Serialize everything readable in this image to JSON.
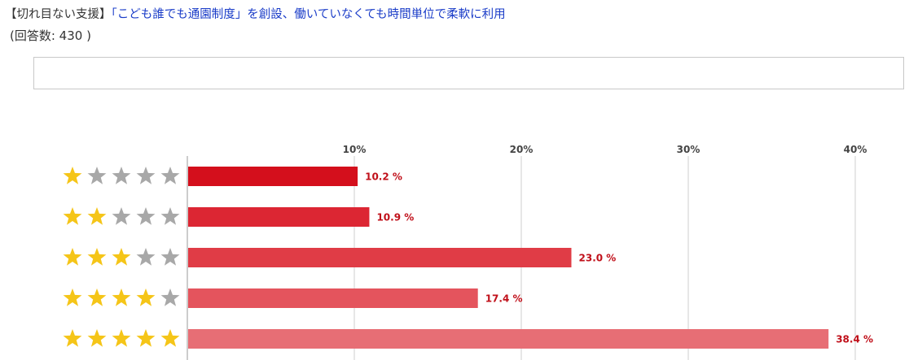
{
  "header": {
    "category": "【切れ目ない支援】",
    "title": "「こども誰でも通園制度」を創設、働いていなくても時間単位で柔軟に利用"
  },
  "responses_label": "(回答数: 430 )",
  "comment_box": "",
  "colors": {
    "star_filled": "#f5c518",
    "star_empty": "#a8a8a8",
    "grid": "#cfcfcf",
    "label": "#c0101a"
  },
  "chart_data": {
    "type": "bar",
    "orientation": "horizontal",
    "categories": [
      "1 star",
      "2 stars",
      "3 stars",
      "4 stars",
      "5 stars"
    ],
    "stars": [
      1,
      2,
      3,
      4,
      5
    ],
    "values": [
      10.2,
      10.9,
      23.0,
      17.4,
      38.4
    ],
    "value_labels": [
      "10.2 %",
      "10.9 %",
      "23.0 %",
      "17.4 %",
      "38.4 %"
    ],
    "bar_colors": [
      "#d40f1c",
      "#dc2633",
      "#e03c46",
      "#e4545d",
      "#e76e75"
    ],
    "xticks": [
      10,
      20,
      30,
      40
    ],
    "xtick_labels": [
      "10%",
      "20%",
      "30%",
      "40%"
    ],
    "xlim": [
      0,
      40
    ],
    "grid": true,
    "axis_position": "top"
  }
}
